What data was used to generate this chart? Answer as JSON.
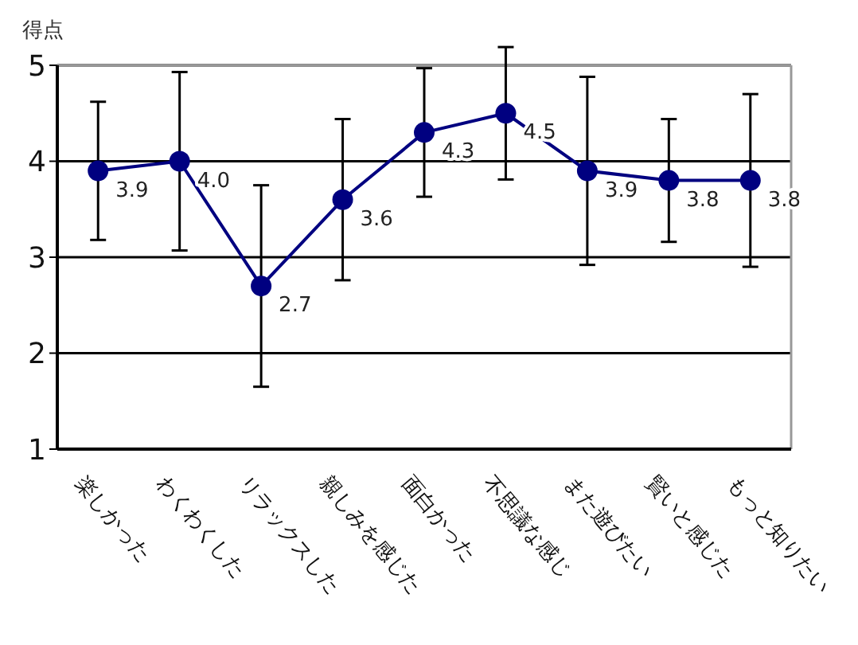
{
  "chart_data": {
    "type": "line",
    "ylabel": "得点",
    "categories": [
      "楽しかった",
      "わくわくした",
      "リラックスした",
      "親しみを感じた",
      "面白かった",
      "不思議な感じ",
      "また遊びたい",
      "賢いと感じた",
      "もっと知りたい"
    ],
    "series": [
      {
        "color": "#000080",
        "values": [
          3.9,
          4.0,
          2.7,
          3.6,
          4.3,
          4.5,
          3.9,
          3.8,
          3.8
        ],
        "errors": [
          0.72,
          0.93,
          1.05,
          0.84,
          0.67,
          0.69,
          0.98,
          0.64,
          0.9
        ],
        "value_labels": [
          "3.9",
          "4.0",
          "2.7",
          "3.6",
          "4.3",
          "4.5",
          "3.9",
          "3.8",
          "3.8"
        ]
      }
    ],
    "ylim": [
      1,
      5
    ],
    "yticks": [
      1,
      2,
      3,
      4,
      5
    ],
    "grid": "y",
    "marker": "circle",
    "line_style": "solid"
  }
}
